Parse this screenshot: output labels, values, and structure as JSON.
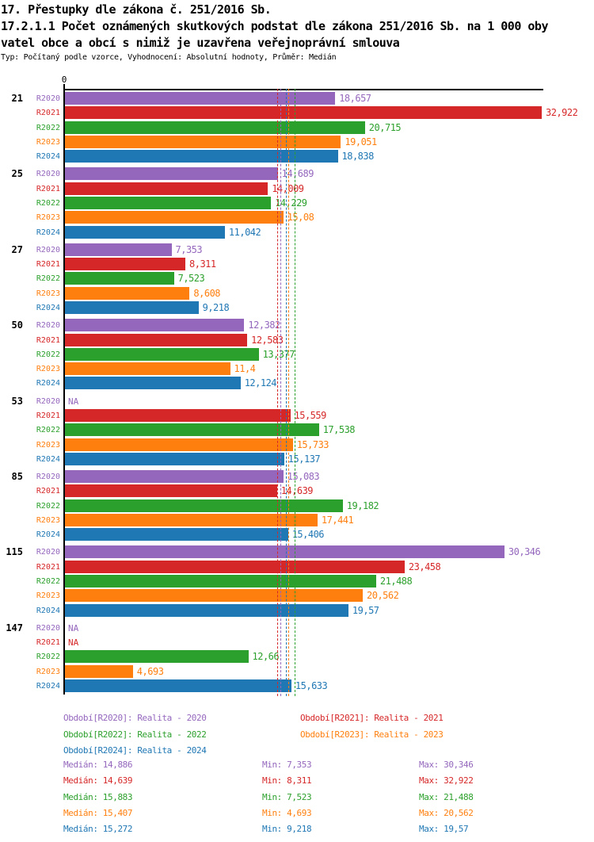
{
  "header": {
    "title": "17. Přestupky dle zákona č. 251/2016 Sb.",
    "subtitle_line1": "17.2.1.1 Počet oznámených skutkových podstat dle zákona 251/2016 Sb. na 1 000 oby",
    "subtitle_line2": "vatel obce a obcí s nimiž je uzavřena veřejnoprávní smlouva",
    "meta": "Typ: Počítaný podle vzorce, Vyhodnocení: Absolutní hodnoty, Průměr: Medián"
  },
  "axis": {
    "zero_label": "0"
  },
  "chart_data": {
    "type": "bar",
    "orientation": "horizontal",
    "title": "17.2.1.1 Počet oznámených skutkových podstat dle zákona 251/2016 Sb. na 1 000 obyvatel obce a obcí s nimiž je uzavřena veřejnoprávní smlouva",
    "categories": [
      "21",
      "25",
      "27",
      "50",
      "53",
      "85",
      "115",
      "147"
    ],
    "na_label": "NA",
    "xlim": [
      0,
      33.1
    ],
    "grid": false,
    "series": [
      {
        "name": "R2020",
        "legend": "Období[R2020]: Realita - 2020",
        "color": "#9467bd",
        "values": [
          18.657,
          14.689,
          7.353,
          12.382,
          null,
          15.083,
          30.346,
          null
        ],
        "median": 14.886,
        "min": 7.353,
        "max": 30.346
      },
      {
        "name": "R2021",
        "legend": "Období[R2021]: Realita - 2021",
        "color": "#d62728",
        "values": [
          32.922,
          14.009,
          8.311,
          12.583,
          15.559,
          14.639,
          23.458,
          null
        ],
        "median": 14.639,
        "min": 8.311,
        "max": 32.922
      },
      {
        "name": "R2022",
        "legend": "Období[R2022]: Realita - 2022",
        "color": "#2ca02c",
        "values": [
          20.715,
          14.229,
          7.523,
          13.377,
          17.538,
          19.182,
          21.488,
          12.66
        ],
        "median": 15.883,
        "min": 7.523,
        "max": 21.488
      },
      {
        "name": "R2023",
        "legend": "Období[R2023]: Realita - 2023",
        "color": "#ff7f0e",
        "values": [
          19.051,
          15.08,
          8.608,
          11.4,
          15.733,
          17.441,
          20.562,
          4.693
        ],
        "median": 15.407,
        "min": 4.693,
        "max": 20.562
      },
      {
        "name": "R2024",
        "legend": "Období[R2024]: Realita - 2024",
        "color": "#1f77b4",
        "values": [
          18.838,
          11.042,
          9.218,
          12.124,
          15.137,
          15.406,
          19.57,
          15.633
        ],
        "median": 15.272,
        "min": 9.218,
        "max": 19.57
      }
    ]
  },
  "stats": {
    "labels": {
      "median": "Medián",
      "min": "Min",
      "max": "Max"
    },
    "rows": [
      {
        "series": "R2020",
        "color": "#9467bd",
        "median": "14,886",
        "min": "7,353",
        "max": "30,346"
      },
      {
        "series": "R2021",
        "color": "#d62728",
        "median": "14,639",
        "min": "8,311",
        "max": "32,922"
      },
      {
        "series": "R2022",
        "color": "#2ca02c",
        "median": "15,883",
        "min": "7,523",
        "max": "21,488"
      },
      {
        "series": "R2023",
        "color": "#ff7f0e",
        "median": "15,407",
        "min": "4,693",
        "max": "20,562"
      },
      {
        "series": "R2024",
        "color": "#1f77b4",
        "median": "15,272",
        "min": "9,218",
        "max": "19,57"
      }
    ]
  }
}
